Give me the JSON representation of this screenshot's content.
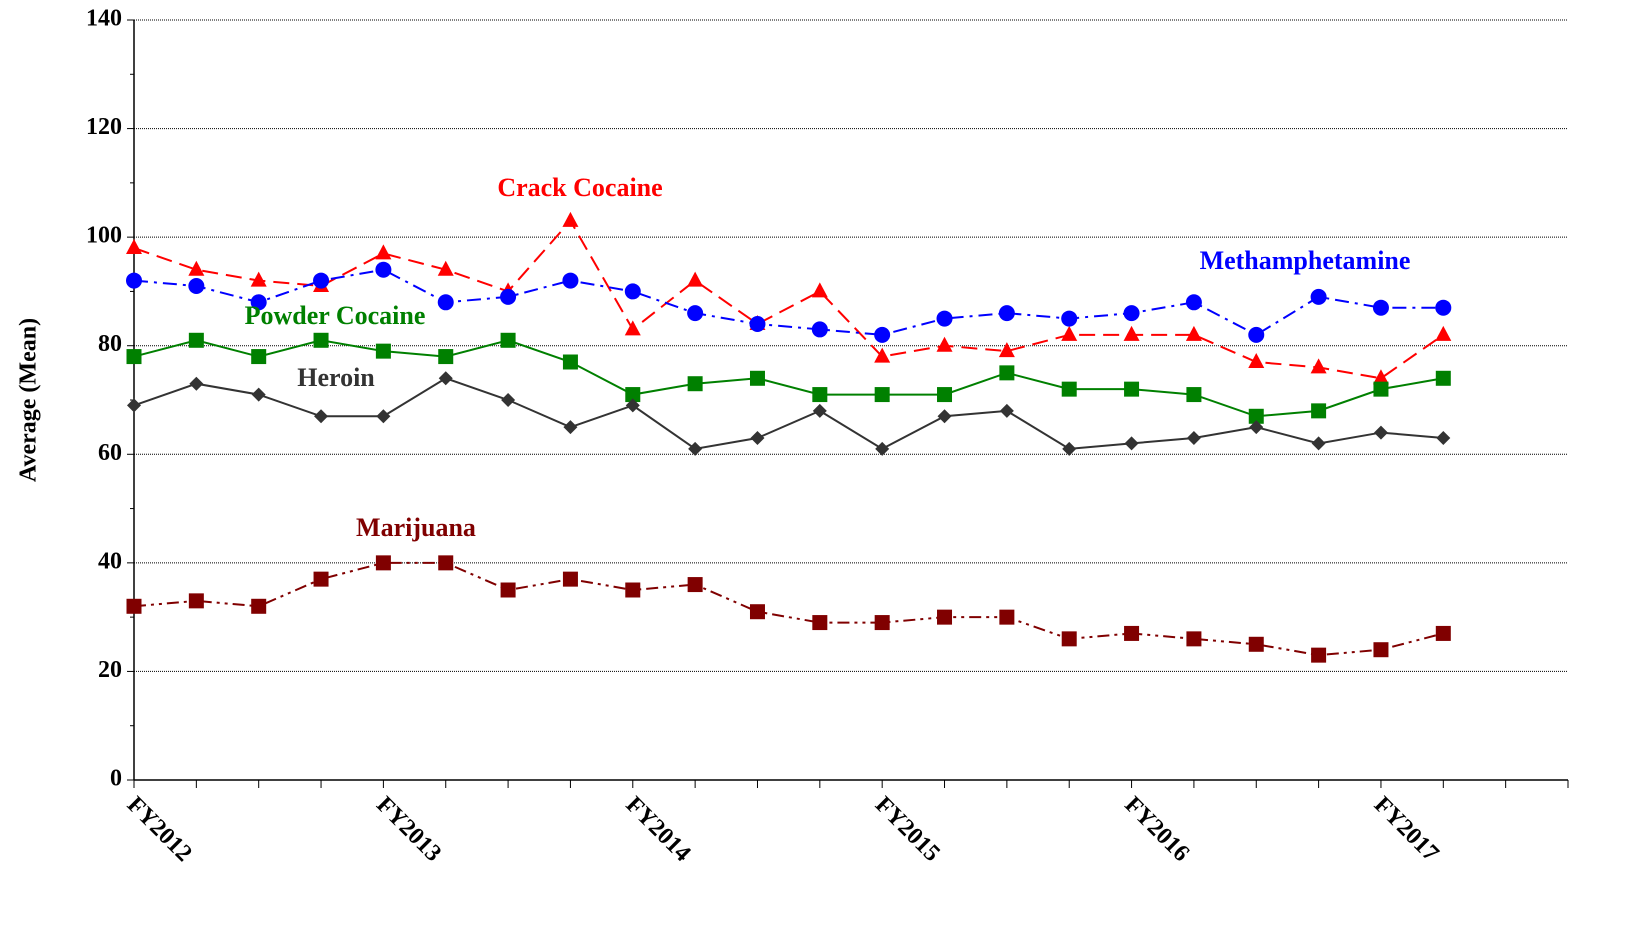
{
  "chart_data": {
    "type": "line",
    "y_label": "Average (Mean)",
    "categories": [
      "FY2012",
      null,
      null,
      null,
      "FY2013",
      null,
      null,
      null,
      "FY2014",
      null,
      null,
      null,
      "FY2015",
      null,
      null,
      null,
      "FY2016",
      null,
      null,
      null,
      "FY2017",
      null,
      null,
      null
    ],
    "ylim": [
      0,
      140
    ],
    "yticks": [
      0,
      20,
      40,
      60,
      80,
      100,
      120,
      140
    ],
    "grid": true,
    "series": [
      {
        "name": "Crack Cocaine",
        "color": "#ff0000",
        "marker": "triangle",
        "dash": "dashed",
        "values": [
          98,
          94,
          92,
          91,
          97,
          94,
          90,
          103,
          83,
          92,
          84,
          90,
          78,
          80,
          79,
          82,
          82,
          82,
          77,
          76,
          74,
          82,
          null,
          null
        ]
      },
      {
        "name": "Methamphetamine",
        "color": "#0000ff",
        "marker": "circle",
        "dash": "dashdot",
        "values": [
          92,
          91,
          88,
          92,
          94,
          88,
          89,
          92,
          90,
          86,
          84,
          83,
          82,
          85,
          86,
          85,
          86,
          88,
          82,
          89,
          87,
          87,
          null,
          null
        ]
      },
      {
        "name": "Powder Cocaine",
        "color": "#008000",
        "marker": "square",
        "dash": "solid",
        "values": [
          78,
          81,
          78,
          81,
          79,
          78,
          81,
          77,
          71,
          73,
          74,
          71,
          71,
          71,
          75,
          72,
          72,
          71,
          67,
          68,
          72,
          74,
          null,
          null
        ]
      },
      {
        "name": "Heroin",
        "color": "#333333",
        "marker": "diamond",
        "dash": "solid",
        "values": [
          69,
          73,
          71,
          67,
          67,
          74,
          70,
          65,
          69,
          61,
          63,
          68,
          61,
          67,
          68,
          61,
          62,
          63,
          65,
          62,
          64,
          63,
          null,
          null
        ]
      },
      {
        "name": "Marijuana",
        "color": "#800000",
        "marker": "square",
        "dash": "dashdotdot",
        "values": [
          32,
          33,
          32,
          37,
          40,
          40,
          35,
          37,
          35,
          36,
          31,
          29,
          29,
          30,
          30,
          26,
          27,
          26,
          25,
          23,
          24,
          27,
          null,
          null
        ]
      }
    ]
  }
}
